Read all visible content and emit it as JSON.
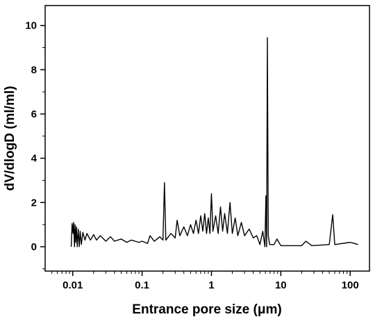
{
  "chart_data": {
    "type": "line",
    "xlabel": "Entrance pore size (μm)",
    "ylabel": "dV/dlogD (ml/ml)",
    "xscale": "log",
    "color": "#000000",
    "xlim": [
      0.004,
      190
    ],
    "xticks": [
      0.01,
      0.1,
      1,
      10,
      100
    ],
    "xminorticks": [
      0.005,
      0.006,
      0.007,
      0.008,
      0.009,
      0.02,
      0.03,
      0.04,
      0.05,
      0.06,
      0.07,
      0.08,
      0.09,
      0.2,
      0.3,
      0.4,
      0.5,
      0.6,
      0.7,
      0.8,
      0.9,
      2,
      3,
      4,
      5,
      6,
      7,
      8,
      9,
      20,
      30,
      40,
      50,
      60,
      70,
      80,
      90
    ],
    "ylim": [
      -1.1,
      10.9
    ],
    "yticks": [
      0,
      2,
      4,
      6,
      8,
      10
    ],
    "yminorticks": [
      -1,
      1,
      3,
      5,
      7,
      9
    ],
    "x": [
      0.0095,
      0.0098,
      0.0101,
      0.0103,
      0.0106,
      0.0108,
      0.011,
      0.0113,
      0.0116,
      0.012,
      0.0124,
      0.0128,
      0.0133,
      0.014,
      0.015,
      0.016,
      0.018,
      0.02,
      0.022,
      0.025,
      0.03,
      0.035,
      0.04,
      0.05,
      0.06,
      0.07,
      0.09,
      0.1,
      0.12,
      0.13,
      0.15,
      0.18,
      0.2,
      0.21,
      0.22,
      0.26,
      0.3,
      0.32,
      0.35,
      0.4,
      0.45,
      0.5,
      0.55,
      0.6,
      0.65,
      0.7,
      0.75,
      0.8,
      0.85,
      0.9,
      0.95,
      1.0,
      1.05,
      1.15,
      1.25,
      1.35,
      1.45,
      1.55,
      1.7,
      1.85,
      2.0,
      2.2,
      2.4,
      2.7,
      3.0,
      3.5,
      4.0,
      4.5,
      5.0,
      5.5,
      5.9,
      6.1,
      6.25,
      6.4,
      6.6,
      6.9,
      8.0,
      8.8,
      10,
      20,
      23,
      28,
      50,
      56,
      60,
      100,
      115,
      130
    ],
    "values": [
      0,
      1.05,
      0.6,
      1.1,
      0,
      1.0,
      0.2,
      0.9,
      0,
      0.8,
      0,
      0.7,
      0.1,
      0.65,
      0.3,
      0.6,
      0.3,
      0.55,
      0.3,
      0.5,
      0.25,
      0.45,
      0.25,
      0.35,
      0.2,
      0.3,
      0.2,
      0.25,
      0.15,
      0.5,
      0.25,
      0.45,
      0.3,
      2.9,
      0.3,
      0.6,
      0.4,
      1.2,
      0.5,
      0.9,
      0.5,
      1.0,
      0.6,
      1.2,
      0.6,
      1.4,
      0.7,
      1.5,
      0.6,
      1.3,
      0.6,
      2.4,
      0.7,
      1.4,
      0.6,
      1.8,
      0.7,
      1.5,
      0.6,
      2.0,
      0.6,
      1.3,
      0.5,
      1.1,
      0.5,
      0.8,
      0.4,
      0.5,
      0.1,
      0.7,
      0,
      2.3,
      0,
      9.45,
      0.5,
      0.1,
      0.1,
      0.35,
      0.05,
      0.05,
      0.25,
      0.05,
      0.1,
      1.45,
      0.1,
      0.2,
      0.15,
      0.1
    ]
  }
}
